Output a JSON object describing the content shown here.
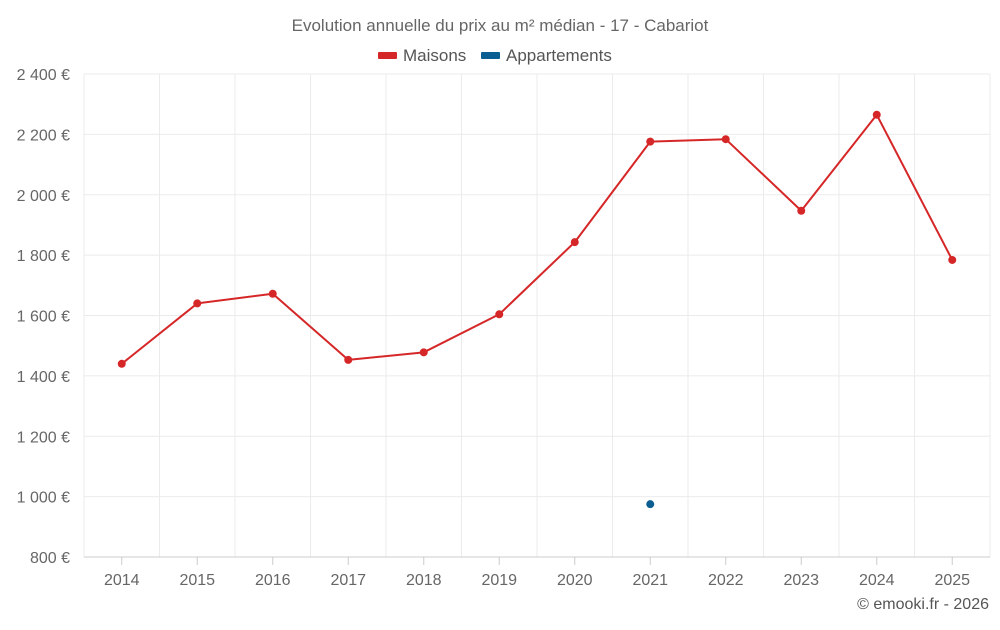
{
  "chart_data": {
    "type": "line",
    "title": "Evolution annuelle du prix au m² médian - 17 - Cabariot",
    "categories": [
      "2014",
      "2015",
      "2016",
      "2017",
      "2018",
      "2019",
      "2020",
      "2021",
      "2022",
      "2023",
      "2024",
      "2025"
    ],
    "series": [
      {
        "name": "Maisons",
        "color": "#d62728",
        "values": [
          1440,
          1640,
          1672,
          1453,
          1478,
          1604,
          1843,
          2176,
          2184,
          1947,
          2265,
          1784
        ]
      },
      {
        "name": "Appartements",
        "color": "#0b5e91",
        "values": [
          null,
          null,
          null,
          null,
          null,
          null,
          null,
          975,
          null,
          null,
          null,
          null
        ]
      }
    ],
    "ylim": [
      800,
      2400
    ],
    "yticks": [
      800,
      1000,
      1200,
      1400,
      1600,
      1800,
      2000,
      2200,
      2400
    ],
    "ytick_labels": [
      "800 €",
      "1 000 €",
      "1 200 €",
      "1 400 €",
      "1 600 €",
      "1 800 €",
      "2 000 €",
      "2 200 €",
      "2 400 €"
    ],
    "xlabel": "",
    "ylabel": "",
    "grid": true,
    "legend_position": "top-center",
    "credit": "© emooki.fr - 2026"
  }
}
